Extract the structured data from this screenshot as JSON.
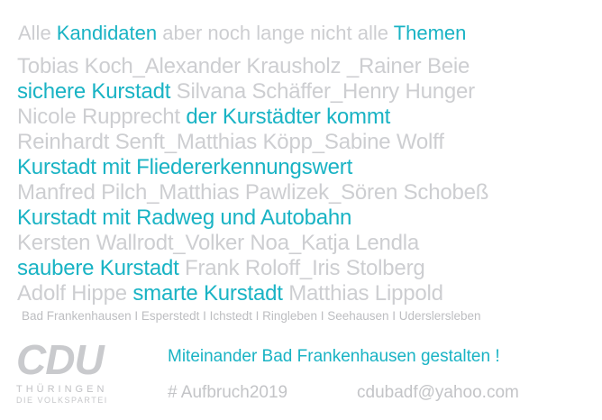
{
  "headline": {
    "p1": "Alle ",
    "p2": "Kandidaten",
    "p3": " aber noch lange nicht alle ",
    "p4": "Themen"
  },
  "lines": [
    [
      {
        "text": "Tobias Koch_Alexander Krausholz _Rainer Beie",
        "c": "g"
      }
    ],
    [
      {
        "text": "sichere Kurstadt",
        "c": "t"
      },
      {
        "text": " Silvana Schäffer_Henry Hunger",
        "c": "g"
      }
    ],
    [
      {
        "text": "Nicole Rupprecht ",
        "c": "g"
      },
      {
        "text": "der Kurstädter kommt",
        "c": "t"
      }
    ],
    [
      {
        "text": "Reinhardt Senft_Matthias Köpp_Sabine Wolff",
        "c": "g"
      }
    ],
    [
      {
        "text": "Kurstadt mit Fliedererkennungswert",
        "c": "t"
      }
    ],
    [
      {
        "text": "Manfred Pilch_Matthias Pawlizek_Sören Schobeß",
        "c": "g"
      }
    ],
    [
      {
        "text": "Kurstadt mit Radweg und Autobahn",
        "c": "t"
      }
    ],
    [
      {
        "text": "Kersten Wallrodt_Volker Noa_Katja Lendla",
        "c": "g"
      }
    ],
    [
      {
        "text": "saubere Kurstadt",
        "c": "t"
      },
      {
        "text": " Frank Roloff_Iris Stolberg",
        "c": "g"
      }
    ],
    [
      {
        "text": "Adolf Hippe ",
        "c": "g"
      },
      {
        "text": "smarte Kurstadt",
        "c": "t"
      },
      {
        "text": " Matthias Lippold",
        "c": "g"
      }
    ]
  ],
  "towns": "Bad Frankenhausen I Esperstedt I Ichstedt I Ringleben I Seehausen I Uderslersleben",
  "logo": {
    "mark": "CDU",
    "region": "THÜRINGEN",
    "slogan": "DIE VOLKSPARTEI"
  },
  "motto": "Miteinander Bad Frankenhausen gestalten !",
  "hashtag": "# Aufbruch2019",
  "email": "cdubadf@yahoo.com",
  "colors": {
    "accent": "#19b3c4",
    "grey": "#cdced1"
  }
}
